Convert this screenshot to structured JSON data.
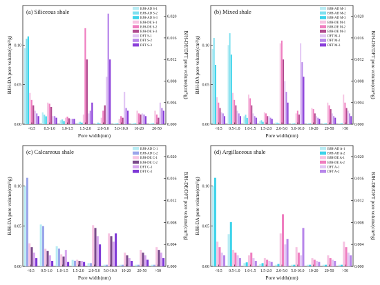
{
  "chart_data": [
    {
      "type": "bar",
      "title": "(a)  Siliceous shale",
      "xlabel": "Pore width(nm)",
      "ylabel": "BJH-DA pore volume(cm³/g)",
      "ylabel_right": "BJH-DE/DFT pore volume(cm³/g)",
      "categories": [
        "<0.5",
        "0.5-1.0",
        "1.0-1.5",
        "1.5-2.0",
        "2.0-5.0",
        "5.0-10.0",
        "10-20",
        "20-50"
      ],
      "ylim": [
        0,
        0.15
      ],
      "yticks": [
        "0.00",
        "0.05",
        "0.10"
      ],
      "ylim_right": [
        0,
        0.022
      ],
      "yticks_right": [
        "0.000",
        "0.004",
        "0.008",
        "0.012",
        "0.016",
        "0.020"
      ],
      "legend": "top-right",
      "series": [
        {
          "name": "BJH-AD S-1",
          "axis": "left",
          "color": "#b9ecf4",
          "values": [
            0.096,
            0.015,
            0.005,
            0.002,
            0.001,
            0.001,
            0.001,
            0.001
          ]
        },
        {
          "name": "BJH-AD S-2",
          "axis": "left",
          "color": "#7ee0ef",
          "values": [
            0.108,
            0.012,
            0.006,
            0.003,
            0.002,
            0.001,
            0.001,
            0.001
          ]
        },
        {
          "name": "BJH-AD S-3",
          "axis": "left",
          "color": "#3cd3ea",
          "values": [
            0.111,
            0.01,
            0.004,
            0.002,
            0.001,
            0.001,
            0.001,
            0.001
          ]
        },
        {
          "name": "BJH-DE S-1",
          "axis": "right",
          "color": "#f6c4e2",
          "values": [
            0.0058,
            0.004,
            0.0012,
            0.0018,
            0.0012,
            0.001,
            0.0025,
            0.0025
          ]
        },
        {
          "name": "BJH-DE S-2",
          "axis": "right",
          "color": "#ef7ec0",
          "values": [
            0.0045,
            0.0038,
            0.0014,
            0.0178,
            0.0025,
            0.0015,
            0.002,
            0.0018
          ]
        },
        {
          "name": "BJH-DE S-3",
          "axis": "right",
          "color": "#b04a8e",
          "values": [
            0.0035,
            0.0032,
            0.0011,
            0.012,
            0.0035,
            0.0012,
            0.0018,
            0.0012
          ]
        },
        {
          "name": "DFT S-1",
          "axis": "right",
          "color": "#e2c6f4",
          "values": [
            0.0025,
            0.0015,
            0.001,
            0.002,
            0.0088,
            0.006,
            0.002,
            0.004
          ]
        },
        {
          "name": "DFT S-2",
          "axis": "right",
          "color": "#b786ea",
          "values": [
            0.002,
            0.0015,
            0.001,
            0.0025,
            0.0205,
            0.003,
            0.0018,
            0.003
          ]
        },
        {
          "name": "DFT S-3",
          "axis": "right",
          "color": "#8a3ed9",
          "values": [
            0.0015,
            0.0012,
            0.001,
            0.004,
            0.012,
            0.0025,
            0.0015,
            0.0025
          ]
        }
      ]
    },
    {
      "type": "bar",
      "title": "(b)  Mixed shale",
      "xlabel": "Pore width(nm)",
      "ylabel": "BJH-DA pore volume(cm³/g)",
      "ylabel_right": "BJH-DE/DFT pore volume(cm³/g)",
      "categories": [
        "<0.5",
        "0.5-1.0",
        "1.0-1.5",
        "1.5-2.0",
        "2.0-5.0",
        "5.0-10.0",
        "10-20",
        "20-50",
        ">50"
      ],
      "ylim": [
        0,
        0.15
      ],
      "yticks": [
        "0.00",
        "0.05",
        "0.10"
      ],
      "ylim_right": [
        0,
        0.022
      ],
      "yticks_right": [
        "0.000",
        "0.004",
        "0.008",
        "0.012",
        "0.016",
        "0.020"
      ],
      "legend": "top-right",
      "series": [
        {
          "name": "BJH-AD M-1",
          "axis": "left",
          "color": "#b9ecf4",
          "values": [
            0.095,
            0.1,
            0.01,
            0.004,
            0.002,
            0.001,
            0.001,
            0.001,
            0.001
          ]
        },
        {
          "name": "BJH-AD M-2",
          "axis": "left",
          "color": "#7ee0ef",
          "values": [
            0.109,
            0.115,
            0.012,
            0.005,
            0.002,
            0.001,
            0.001,
            0.001,
            0.001
          ]
        },
        {
          "name": "BJH-AD M-3",
          "axis": "left",
          "color": "#3cd3ea",
          "values": [
            0.075,
            0.088,
            0.008,
            0.003,
            0.001,
            0.001,
            0.001,
            0.001,
            0.001
          ]
        },
        {
          "name": "BJH-DE M-1",
          "axis": "right",
          "color": "#f6c4e2",
          "values": [
            0.005,
            0.0058,
            0.0055,
            0.0022,
            0.015,
            0.002,
            0.003,
            0.004,
            0.0055
          ]
        },
        {
          "name": "BJH-DE M-2",
          "axis": "right",
          "color": "#ef7ec0",
          "values": [
            0.004,
            0.0045,
            0.0048,
            0.002,
            0.0155,
            0.0025,
            0.0028,
            0.0035,
            0.004
          ]
        },
        {
          "name": "BJH-DE M-3",
          "axis": "right",
          "color": "#b04a8e",
          "values": [
            0.003,
            0.0035,
            0.0035,
            0.0015,
            0.012,
            0.0018,
            0.002,
            0.0028,
            0.003
          ]
        },
        {
          "name": "DFT M-1",
          "axis": "right",
          "color": "#e2c6f4",
          "values": [
            0.0022,
            0.0025,
            0.002,
            0.0015,
            0.008,
            0.015,
            0.0015,
            0.002,
            0.0025
          ]
        },
        {
          "name": "DFT M-2",
          "axis": "right",
          "color": "#b786ea",
          "values": [
            0.002,
            0.002,
            0.0015,
            0.0012,
            0.006,
            0.0115,
            0.0012,
            0.0015,
            0.002
          ]
        },
        {
          "name": "DFT M-3",
          "axis": "right",
          "color": "#8a3ed9",
          "values": [
            0.0015,
            0.0015,
            0.0012,
            0.001,
            0.004,
            0.0088,
            0.001,
            0.0012,
            0.0015
          ]
        }
      ]
    },
    {
      "type": "bar",
      "title": "(c)  Calcareous shale",
      "xlabel": "Pore width(nm)",
      "ylabel": "BJH-DA pore volume(cm³/g)",
      "ylabel_right": "BJH-DE/DFT pore volume(cm³/g)",
      "categories": [
        "<0.5",
        "0.5-1.0",
        "1.0-1.5",
        "1.5-2.0",
        "2.0-5.0",
        "5.0-10.0",
        "10-20",
        "20-50",
        ">50"
      ],
      "ylim": [
        0,
        0.15
      ],
      "yticks": [
        "0.00",
        "0.05",
        "0.10"
      ],
      "ylim_right": [
        0,
        0.022
      ],
      "yticks_right": [
        "0.000",
        "0.004",
        "0.008",
        "0.012",
        "0.016",
        "0.020"
      ],
      "legend": "top-right",
      "series": [
        {
          "name": "BJH-AD C-1",
          "axis": "left",
          "color": "#b9ecf4",
          "values": [
            0.1,
            0.052,
            0.025,
            0.008,
            0.004,
            0.002,
            0.002,
            0.002,
            0.002
          ]
        },
        {
          "name": "BJH-AD C-2",
          "axis": "left",
          "color": "#9aa5ea",
          "values": [
            0.11,
            0.05,
            0.022,
            0.007,
            0.004,
            0.002,
            0.002,
            0.002,
            0.002
          ]
        },
        {
          "name": "BJH-DE C-1",
          "axis": "right",
          "color": "#f6c4e2",
          "values": [
            0.0042,
            0.0032,
            0.0022,
            0.0012,
            0.0075,
            0.006,
            0.0025,
            0.003,
            0.0035
          ]
        },
        {
          "name": "BJH-DE C-2",
          "axis": "right",
          "color": "#7a4a8a",
          "values": [
            0.0035,
            0.0028,
            0.0018,
            0.001,
            0.007,
            0.0055,
            0.002,
            0.0025,
            0.003
          ]
        },
        {
          "name": "DFT C-1",
          "axis": "right",
          "color": "#d8a8ef",
          "values": [
            0.0025,
            0.002,
            0.003,
            0.001,
            0.0055,
            0.0045,
            0.0015,
            0.002,
            0.0025
          ]
        },
        {
          "name": "DFT C-2",
          "axis": "right",
          "color": "#7d37d6",
          "values": [
            0.0015,
            0.001,
            0.0008,
            0.0008,
            0.004,
            0.006,
            0.001,
            0.0012,
            0.0015
          ]
        }
      ]
    },
    {
      "type": "bar",
      "title": "(d)  Argillaceous shale",
      "xlabel": "Pore width(nm)",
      "ylabel": "BJH-DA pore volume(cm³/g)",
      "ylabel_right": "BJH-DE/DFT pore volume(cm³/g)",
      "categories": [
        "<0.5",
        "0.5-1.0",
        "1.0-1.5",
        "1.5-2.0",
        "2.0-5.0",
        "5.0-10.0",
        "10-20",
        "20-50",
        ">50"
      ],
      "ylim": [
        0,
        0.15
      ],
      "yticks": [
        "0.00",
        "0.05",
        "0.10"
      ],
      "ylim_right": [
        0,
        0.022
      ],
      "yticks_right": [
        "0.000",
        "0.004",
        "0.008",
        "0.012",
        "0.016",
        "0.020"
      ],
      "legend": "top-right",
      "series": [
        {
          "name": "BJH-AD A-1",
          "axis": "left",
          "color": "#b9ecf4",
          "values": [
            0.1,
            0.04,
            0.004,
            0.003,
            0.002,
            0.002,
            0.002,
            0.002,
            0.002
          ]
        },
        {
          "name": "BJH-AD A-2",
          "axis": "left",
          "color": "#3cd3ea",
          "values": [
            0.11,
            0.055,
            0.005,
            0.004,
            0.003,
            0.002,
            0.002,
            0.002,
            0.002
          ]
        },
        {
          "name": "BJH-DE A-1",
          "axis": "right",
          "color": "#f6c4e2",
          "values": [
            0.0045,
            0.003,
            0.002,
            0.0015,
            0.006,
            0.0035,
            0.0015,
            0.002,
            0.0045
          ]
        },
        {
          "name": "BJH-DE A-2",
          "axis": "right",
          "color": "#ef7ec0",
          "values": [
            0.0035,
            0.0025,
            0.0025,
            0.0012,
            0.0095,
            0.0025,
            0.0012,
            0.0015,
            0.0035
          ]
        },
        {
          "name": "DFT A-1",
          "axis": "right",
          "color": "#e2c6f4",
          "values": [
            0.0025,
            0.002,
            0.0015,
            0.001,
            0.004,
            0.002,
            0.001,
            0.0012,
            0.0025
          ]
        },
        {
          "name": "DFT A-2",
          "axis": "right",
          "color": "#b786ea",
          "values": [
            0.002,
            0.0015,
            0.001,
            0.0008,
            0.005,
            0.007,
            0.0008,
            0.001,
            0.002
          ]
        }
      ]
    }
  ]
}
